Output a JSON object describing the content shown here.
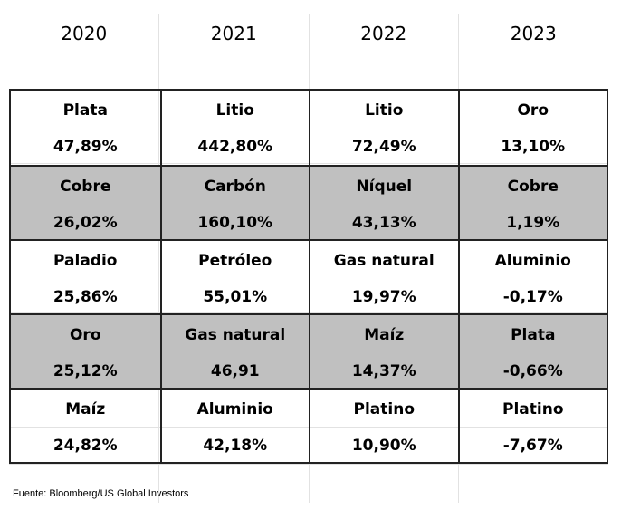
{
  "years": [
    "2020",
    "2021",
    "2022",
    "2023"
  ],
  "rows": [
    {
      "cells": [
        {
          "name": "Plata",
          "value": "47,89%"
        },
        {
          "name": "Litio",
          "value": "442,80%"
        },
        {
          "name": "Litio",
          "value": "72,49%"
        },
        {
          "name": "Oro",
          "value": "13,10%"
        }
      ]
    },
    {
      "cells": [
        {
          "name": "Cobre",
          "value": "26,02%"
        },
        {
          "name": "Carbón",
          "value": "160,10%"
        },
        {
          "name": "Níquel",
          "value": "43,13%"
        },
        {
          "name": "Cobre",
          "value": "1,19%"
        }
      ]
    },
    {
      "cells": [
        {
          "name": "Paladio",
          "value": "25,86%"
        },
        {
          "name": "Petróleo",
          "value": "55,01%"
        },
        {
          "name": "Gas natural",
          "value": "19,97%"
        },
        {
          "name": "Aluminio",
          "value": "-0,17%"
        }
      ]
    },
    {
      "cells": [
        {
          "name": "Oro",
          "value": "25,12%"
        },
        {
          "name": "Gas natural",
          "value": "46,91"
        },
        {
          "name": "Maíz",
          "value": "14,37%"
        },
        {
          "name": "Plata",
          "value": "-0,66%"
        }
      ]
    },
    {
      "cells": [
        {
          "name": "Maíz",
          "value": "24,82%"
        },
        {
          "name": "Aluminio",
          "value": "42,18%"
        },
        {
          "name": "Platino",
          "value": "10,90%"
        },
        {
          "name": "Platino",
          "value": "-7,67%"
        }
      ]
    }
  ],
  "source": "Fuente: Bloomberg/US Global Investors",
  "colors": {
    "shaded_row": "#c0c0c0",
    "border": "#222222",
    "gridline": "#e2e2e2"
  }
}
